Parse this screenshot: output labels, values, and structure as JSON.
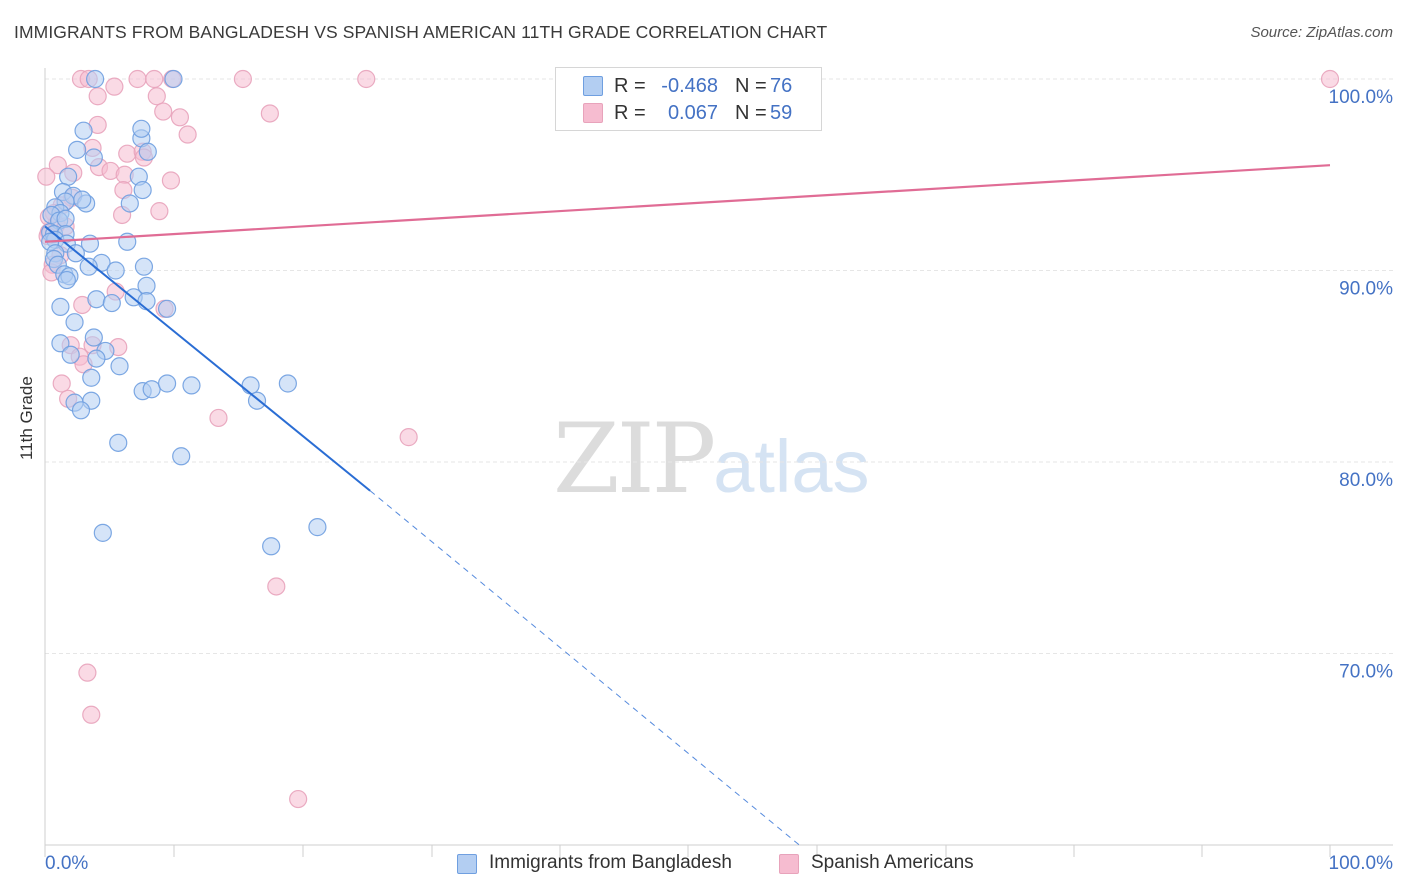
{
  "title": "IMMIGRANTS FROM BANGLADESH VS SPANISH AMERICAN 11TH GRADE CORRELATION CHART",
  "source": "Source: ZipAtlas.com",
  "watermark": {
    "zip": "ZIP",
    "atlas": "atlas"
  },
  "legend": {
    "r_label": "R =",
    "n_label": "N =",
    "series1": {
      "r": "-0.468",
      "n": "76"
    },
    "series2": {
      "r": "0.067",
      "n": "59"
    }
  },
  "colors": {
    "blue_fill": "#b3cef2",
    "blue_stroke": "#6f9fe0",
    "blue_line": "#2a6dd4",
    "pink_fill": "#f6bcd0",
    "pink_stroke": "#e8a3bb",
    "pink_line": "#e06c95",
    "axis_label": "#4472c4",
    "grid": "#e6e6e6"
  },
  "chart_data": {
    "type": "scatter",
    "title": "IMMIGRANTS FROM BANGLADESH VS SPANISH AMERICAN 11TH GRADE CORRELATION CHART",
    "xlabel": "",
    "ylabel": "11th Grade",
    "xlim": [
      0,
      100
    ],
    "ylim": [
      60,
      101
    ],
    "x_tick_labels": [
      "0.0%",
      "100.0%"
    ],
    "y_ticks": [
      70,
      80,
      90,
      100
    ],
    "y_tick_labels": [
      "70.0%",
      "80.0%",
      "90.0%",
      "100.0%"
    ],
    "series": [
      {
        "name": "Immigrants from Bangladesh",
        "r": -0.468,
        "n": 76,
        "trend": {
          "x0": 0,
          "y0": 92.3,
          "x1": 25.3,
          "y1": 78.5,
          "dash_to_x": 58.7,
          "dash_to_y": 60.0
        },
        "points": [
          [
            3.9,
            100
          ],
          [
            10.0,
            100
          ],
          [
            3.0,
            97.3
          ],
          [
            7.5,
            96.9
          ],
          [
            7.5,
            97.4
          ],
          [
            2.5,
            96.3
          ],
          [
            3.8,
            95.9
          ],
          [
            8.0,
            96.2
          ],
          [
            7.3,
            94.9
          ],
          [
            1.8,
            94.9
          ],
          [
            1.4,
            94.1
          ],
          [
            7.6,
            94.2
          ],
          [
            2.2,
            93.9
          ],
          [
            3.2,
            93.5
          ],
          [
            2.9,
            93.7
          ],
          [
            1.6,
            93.6
          ],
          [
            6.6,
            93.5
          ],
          [
            0.8,
            93.3
          ],
          [
            1.2,
            93.0
          ],
          [
            0.5,
            92.9
          ],
          [
            1.1,
            92.6
          ],
          [
            1.6,
            92.7
          ],
          [
            0.4,
            92.0
          ],
          [
            0.7,
            91.9
          ],
          [
            1.6,
            91.9
          ],
          [
            0.8,
            91.6
          ],
          [
            0.4,
            91.5
          ],
          [
            1.7,
            91.4
          ],
          [
            3.5,
            91.4
          ],
          [
            6.4,
            91.5
          ],
          [
            0.8,
            90.9
          ],
          [
            2.4,
            90.9
          ],
          [
            0.7,
            90.6
          ],
          [
            1.0,
            90.3
          ],
          [
            4.4,
            90.4
          ],
          [
            3.4,
            90.2
          ],
          [
            5.5,
            90.0
          ],
          [
            7.7,
            90.2
          ],
          [
            1.5,
            89.8
          ],
          [
            1.9,
            89.7
          ],
          [
            1.7,
            89.5
          ],
          [
            7.9,
            89.2
          ],
          [
            4.0,
            88.5
          ],
          [
            6.9,
            88.6
          ],
          [
            5.2,
            88.3
          ],
          [
            7.9,
            88.4
          ],
          [
            1.2,
            88.1
          ],
          [
            9.5,
            88.0
          ],
          [
            2.3,
            87.3
          ],
          [
            3.8,
            86.5
          ],
          [
            1.2,
            86.2
          ],
          [
            2.0,
            85.6
          ],
          [
            4.7,
            85.8
          ],
          [
            4.0,
            85.4
          ],
          [
            5.8,
            85.0
          ],
          [
            3.6,
            84.4
          ],
          [
            7.6,
            83.7
          ],
          [
            8.3,
            83.8
          ],
          [
            9.5,
            84.1
          ],
          [
            11.4,
            84.0
          ],
          [
            16.0,
            84.0
          ],
          [
            18.9,
            84.1
          ],
          [
            3.6,
            83.2
          ],
          [
            2.3,
            83.1
          ],
          [
            16.5,
            83.2
          ],
          [
            2.8,
            82.7
          ],
          [
            5.7,
            81.0
          ],
          [
            10.6,
            80.3
          ],
          [
            21.2,
            76.6
          ],
          [
            4.5,
            76.3
          ],
          [
            17.6,
            75.6
          ]
        ]
      },
      {
        "name": "Spanish Americans",
        "r": 0.067,
        "n": 59,
        "trend": {
          "x0": 0,
          "y0": 91.5,
          "x1": 100,
          "y1": 95.5
        },
        "points": [
          [
            2.8,
            100
          ],
          [
            3.4,
            100
          ],
          [
            7.2,
            100
          ],
          [
            8.5,
            100
          ],
          [
            9.9,
            100
          ],
          [
            15.4,
            100
          ],
          [
            25.0,
            100
          ],
          [
            100.0,
            100
          ],
          [
            5.4,
            99.6
          ],
          [
            4.1,
            99.1
          ],
          [
            8.7,
            99.1
          ],
          [
            9.2,
            98.3
          ],
          [
            17.5,
            98.2
          ],
          [
            10.5,
            98.0
          ],
          [
            4.1,
            97.6
          ],
          [
            11.1,
            97.1
          ],
          [
            3.7,
            96.4
          ],
          [
            6.4,
            96.1
          ],
          [
            7.6,
            96.2
          ],
          [
            1.0,
            95.5
          ],
          [
            4.2,
            95.4
          ],
          [
            7.7,
            95.9
          ],
          [
            5.1,
            95.2
          ],
          [
            6.2,
            95.0
          ],
          [
            0.1,
            94.9
          ],
          [
            2.2,
            95.1
          ],
          [
            9.8,
            94.7
          ],
          [
            6.1,
            94.2
          ],
          [
            2.1,
            93.8
          ],
          [
            1.3,
            93.4
          ],
          [
            0.7,
            93.0
          ],
          [
            8.9,
            93.1
          ],
          [
            6.0,
            92.9
          ],
          [
            0.3,
            92.8
          ],
          [
            0.9,
            92.4
          ],
          [
            1.6,
            92.3
          ],
          [
            0.3,
            92.0
          ],
          [
            0.2,
            91.8
          ],
          [
            1.2,
            90.8
          ],
          [
            0.6,
            90.3
          ],
          [
            0.5,
            89.9
          ],
          [
            5.5,
            88.9
          ],
          [
            9.3,
            88.0
          ],
          [
            2.9,
            88.2
          ],
          [
            3.7,
            86.1
          ],
          [
            2.0,
            86.1
          ],
          [
            5.7,
            86.0
          ],
          [
            2.7,
            85.5
          ],
          [
            3.0,
            85.1
          ],
          [
            1.3,
            84.1
          ],
          [
            1.8,
            83.3
          ],
          [
            13.5,
            82.3
          ],
          [
            28.3,
            81.3
          ],
          [
            18.0,
            73.5
          ],
          [
            3.3,
            69.0
          ],
          [
            3.6,
            66.8
          ],
          [
            19.7,
            62.4
          ]
        ]
      }
    ]
  },
  "bottom_legend": {
    "series1_label": "Immigrants from Bangladesh",
    "series2_label": "Spanish Americans"
  }
}
